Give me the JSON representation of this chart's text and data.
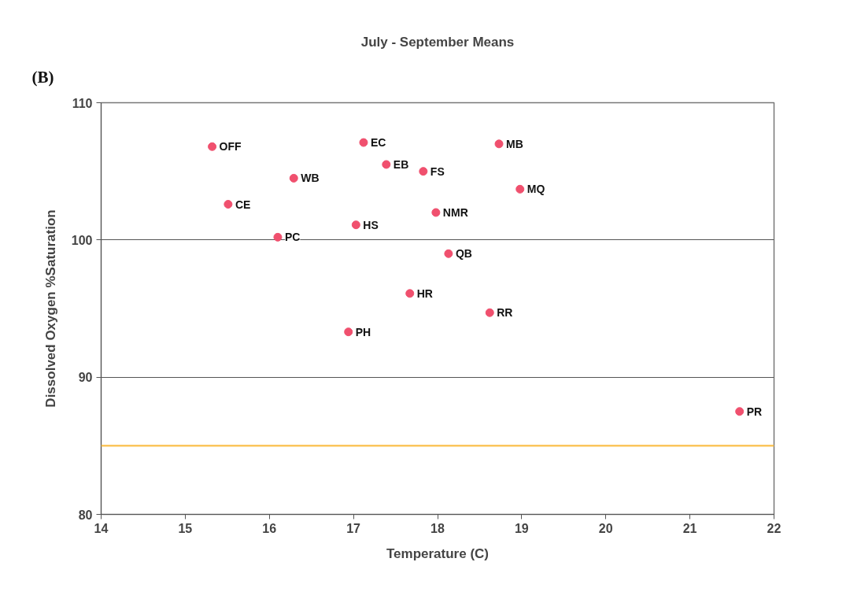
{
  "chart_data": {
    "type": "scatter",
    "title": "July - September Means",
    "xlabel": "Temperature (C)",
    "ylabel": "Dissolved Oxygen %Saturation",
    "annotations": [
      "(B)"
    ],
    "x": [
      15.32,
      15.51,
      16.1,
      16.29,
      17.12,
      17.39,
      17.03,
      16.94,
      17.83,
      17.98,
      18.13,
      17.67,
      18.73,
      18.98,
      18.62,
      21.59
    ],
    "values": [
      106.8,
      102.6,
      100.2,
      104.5,
      107.1,
      105.5,
      101.1,
      93.3,
      105.0,
      102.0,
      99.0,
      96.1,
      107.0,
      103.7,
      94.7,
      87.5
    ],
    "value_labels": [
      "OFF",
      "CE",
      "PC",
      "WB",
      "EC",
      "EB",
      "HS",
      "PH",
      "FS",
      "NMR",
      "QB",
      "HR",
      "MB",
      "MQ",
      "RR",
      "PR"
    ],
    "color": "#f0506e",
    "marker": "circle",
    "xlim": [
      14,
      22
    ],
    "ylim": [
      80,
      110
    ],
    "xticks": [
      14,
      15,
      16,
      17,
      18,
      19,
      20,
      21,
      22
    ],
    "yticks": [
      80,
      90,
      100,
      110
    ],
    "grid": "y",
    "ref_lines": [
      {
        "axis": "y",
        "value": 85,
        "color": "#fbc55c"
      }
    ]
  }
}
